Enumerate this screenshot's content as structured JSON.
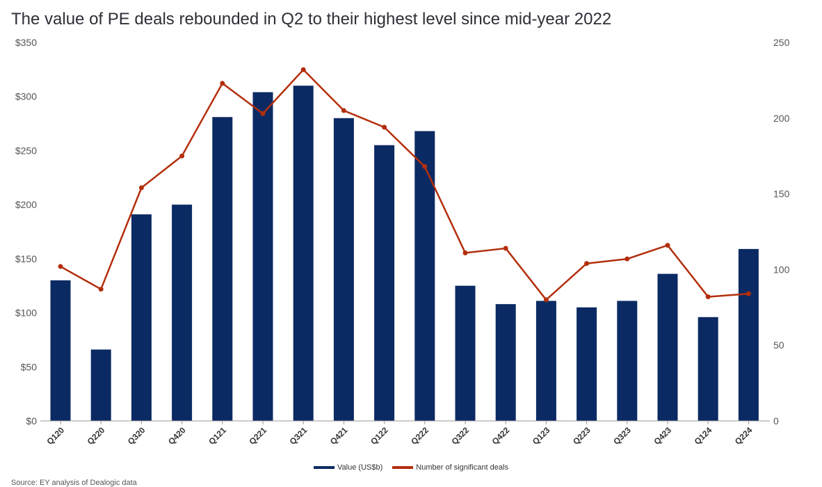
{
  "chart_data": {
    "type": "bar",
    "title": "The value of PE deals rebounded in Q2 to their highest level since mid-year 2022",
    "categories": [
      "Q120",
      "Q220",
      "Q320",
      "Q420",
      "Q121",
      "Q221",
      "Q321",
      "Q421",
      "Q122",
      "Q222",
      "Q322",
      "Q422",
      "Q123",
      "Q223",
      "Q323",
      "Q423",
      "Q124",
      "Q224"
    ],
    "series": [
      {
        "name": "Value (US$b)",
        "type": "bar",
        "axis": "left",
        "color": "#0b2a63",
        "values": [
          130,
          66,
          191,
          200,
          281,
          304,
          310,
          280,
          255,
          268,
          125,
          108,
          111,
          105,
          111,
          136,
          96,
          159
        ]
      },
      {
        "name": "Number of significant deals",
        "type": "line",
        "axis": "right",
        "color": "#b32e0c",
        "values": [
          102,
          87,
          154,
          175,
          223,
          203,
          232,
          205,
          194,
          168,
          111,
          114,
          80,
          104,
          107,
          116,
          82,
          84
        ]
      }
    ],
    "y_left": {
      "ticks": [
        "$0",
        "$50",
        "$100",
        "$150",
        "$200",
        "$250",
        "$300",
        "$350"
      ],
      "range": [
        0,
        350
      ]
    },
    "y_right": {
      "ticks": [
        "0",
        "50",
        "100",
        "150",
        "200",
        "250"
      ],
      "range": [
        0,
        250
      ]
    },
    "legend_position": "bottom-center",
    "grid": false
  },
  "legend": {
    "bar_label": "Value (US$b)",
    "line_label": "Number of significant deals"
  },
  "source": "Source: EY analysis of Dealogic data"
}
